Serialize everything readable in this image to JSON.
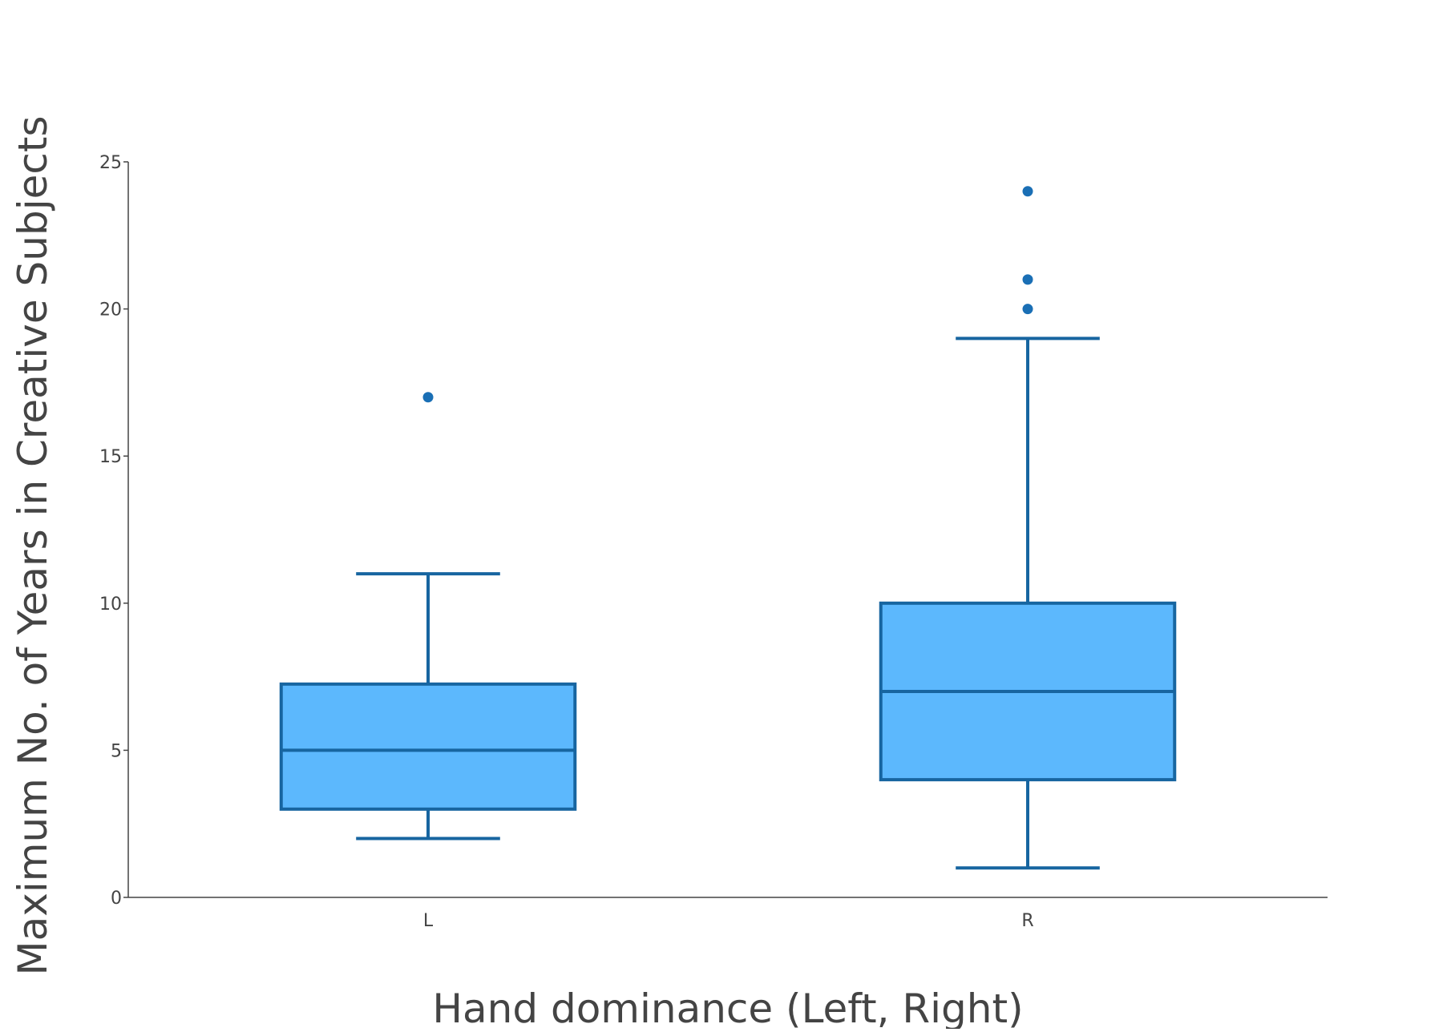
{
  "chart_data": {
    "type": "box",
    "title": "",
    "xlabel": "Hand dominance (Left, Right)",
    "ylabel": "Maximum No. of Years in Creative Subjects",
    "categories": [
      "L",
      "R"
    ],
    "ylim": [
      0,
      25
    ],
    "yticks": [
      0,
      5,
      10,
      15,
      20,
      25
    ],
    "grid": false,
    "legend": "none",
    "boxes": [
      {
        "category": "L",
        "lower_whisker": 2,
        "q1": 3,
        "median": 5,
        "q3": 7.25,
        "upper_whisker": 11,
        "outliers": [
          17
        ]
      },
      {
        "category": "R",
        "lower_whisker": 1,
        "q1": 4,
        "median": 7,
        "q3": 10,
        "upper_whisker": 19,
        "outliers": [
          20,
          21,
          24
        ]
      }
    ],
    "colors": {
      "box_fill": "#5cb8fd",
      "box_line": "#1765a0",
      "outlier": "#1a6fb5",
      "axis": "#444444"
    }
  }
}
